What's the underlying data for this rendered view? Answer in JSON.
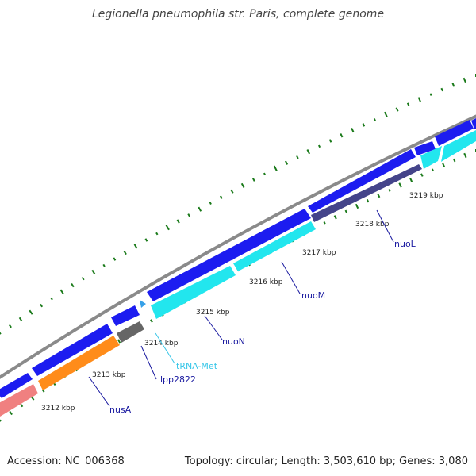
{
  "title": "Legionella pneumophila str. Paris, complete genome",
  "footer": {
    "accession": "Accession: NC_006368",
    "summary": "Topology: circular; Length: 3,503,610 bp; Genes: 3,080"
  },
  "ticks": [
    "3212 kbp",
    "3213 kbp",
    "3214 kbp",
    "3215 kbp",
    "3216 kbp",
    "3217 kbp",
    "3218 kbp",
    "3219 kbp"
  ],
  "gene_labels": [
    {
      "text": "nusA",
      "color": "#1a1aa0"
    },
    {
      "text": "lpp2822",
      "color": "#1a1aa0"
    },
    {
      "text": "tRNA-Met",
      "color": "#36c6e8"
    },
    {
      "text": "nuoN",
      "color": "#1a1aa0"
    },
    {
      "text": "nuoM",
      "color": "#1a1aa0"
    },
    {
      "text": "nuoL",
      "color": "#1a1aa0"
    }
  ],
  "colors": {
    "backbone": "#888888",
    "forward_gene": "#1c1cf0",
    "reverse_gene": "#22e6ee",
    "gray_gene": "#666666",
    "orange_gene": "#ff8c1a",
    "pink_gene": "#f08080",
    "dark_gene": "#44448a",
    "gc_skew": "#1a7a1a"
  }
}
